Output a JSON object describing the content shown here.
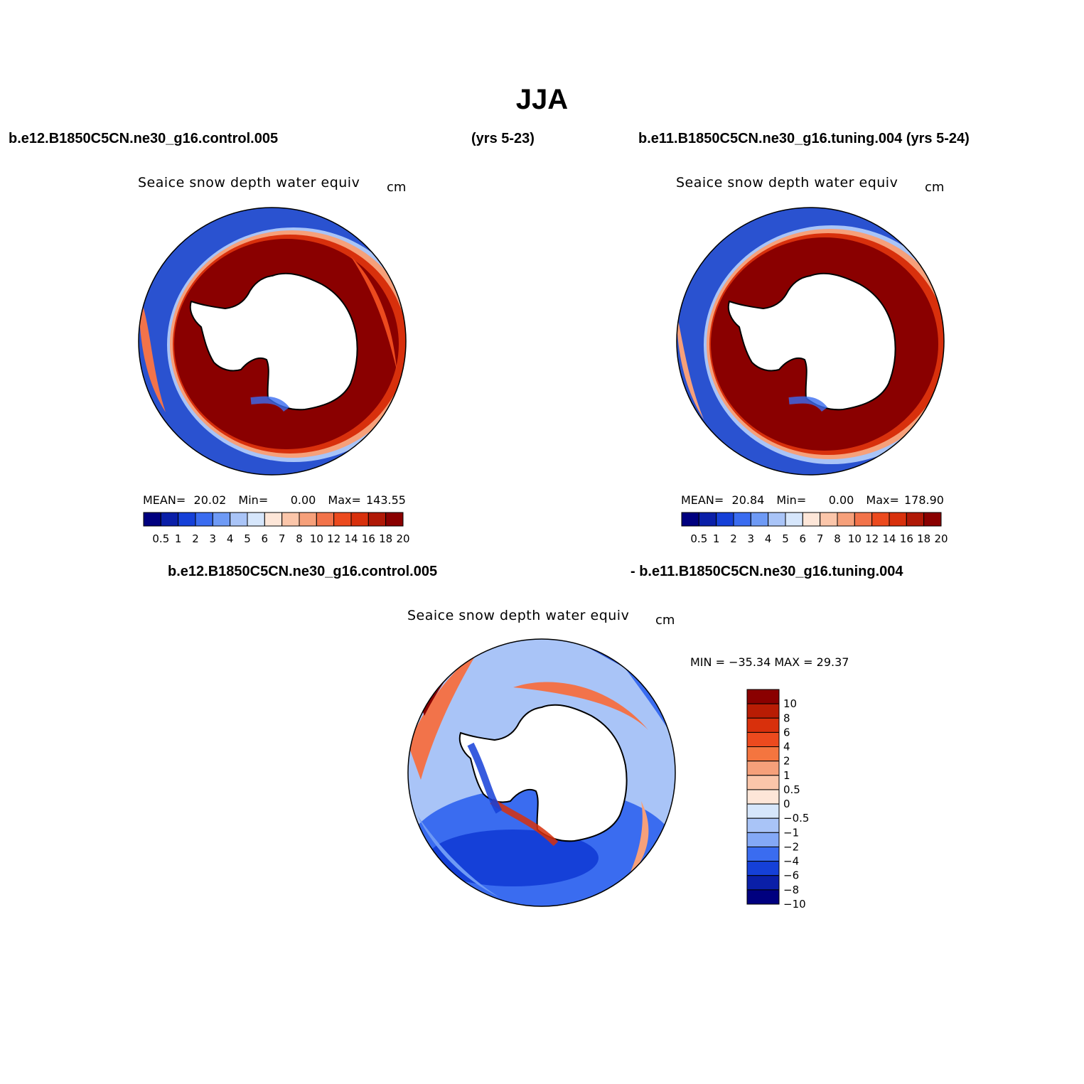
{
  "title": "JJA",
  "top_left_case": "b.e12.B1850C5CN.ne30_g16.control.005",
  "top_left_years": "(yrs 5-23)",
  "top_right_case": "b.e11.B1850C5CN.ne30_g16.tuning.004 (yrs 5-24)",
  "bottom_case_left": "b.e12.B1850C5CN.ne30_g16.control.005",
  "bottom_case_right": "- b.e11.B1850C5CN.ne30_g16.tuning.004",
  "panels": {
    "left": {
      "variable": "Seaice snow depth water equiv",
      "unit": "cm",
      "mean_label": "MEAN=",
      "mean": "20.02",
      "min_label": "Min=",
      "min": "0.00",
      "max_label": "Max=",
      "max": "143.55"
    },
    "right": {
      "variable": "Seaice snow depth water equiv",
      "unit": "cm",
      "mean_label": "MEAN=",
      "mean": "20.84",
      "min_label": "Min=",
      "min": "0.00",
      "max_label": "Max=",
      "max": "178.90"
    },
    "diff": {
      "variable": "Seaice snow depth water equiv",
      "unit": "cm",
      "minmax": "MIN = −35.34 MAX =   29.37"
    }
  },
  "colorbar_abs": {
    "levels": [
      "0.5",
      "1",
      "2",
      "3",
      "4",
      "5",
      "6",
      "7",
      "8",
      "10",
      "12",
      "14",
      "16",
      "18",
      "20"
    ],
    "colors": [
      "#00007f",
      "#0a1fa8",
      "#1540d8",
      "#3a6cf0",
      "#6e9af5",
      "#a9c4f7",
      "#d6e6fb",
      "#fde6d8",
      "#fbc6aa",
      "#f6a07a",
      "#f2734a",
      "#ec4a1e",
      "#d8300c",
      "#b01806",
      "#8a0000"
    ]
  },
  "colorbar_diff": {
    "levels": [
      "10",
      "8",
      "6",
      "4",
      "2",
      "1",
      "0.5",
      "0",
      "−0.5",
      "−1",
      "−2",
      "−4",
      "−6",
      "−8",
      "−10"
    ],
    "colors": [
      "#8a0000",
      "#b81c04",
      "#d8300c",
      "#ec4a1e",
      "#f4753f",
      "#f6a07a",
      "#fbc6aa",
      "#fde6d8",
      "#d6e6fb",
      "#a9c4f7",
      "#84a9f6",
      "#3a6cf0",
      "#1540d8",
      "#0a1fa8",
      "#00007f"
    ]
  }
}
